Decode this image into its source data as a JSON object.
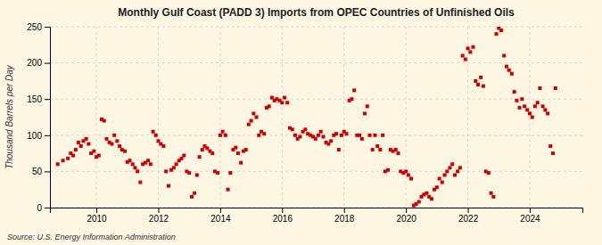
{
  "chart_data": {
    "type": "scatter",
    "title": "Monthly Gulf Coast (PADD 3) Imports from OPEC Countries of Unfinished Oils",
    "ylabel": "Thousand Barrels per Day",
    "source": "Source: U.S. Energy Information Administration",
    "color": "#cc0000",
    "marker": "square",
    "grid": true,
    "xlim": [
      2008.5,
      2025.7
    ],
    "xticks": [
      2010,
      2012,
      2014,
      2016,
      2018,
      2020,
      2022,
      2024
    ],
    "ylim": [
      0,
      250
    ],
    "yticks": [
      0,
      50,
      100,
      150,
      200,
      250
    ],
    "x": [
      2008.75,
      2008.92,
      2009.08,
      2009.17,
      2009.25,
      2009.33,
      2009.42,
      2009.5,
      2009.58,
      2009.67,
      2009.75,
      2009.83,
      2009.92,
      2010.0,
      2010.08,
      2010.17,
      2010.25,
      2010.33,
      2010.42,
      2010.5,
      2010.58,
      2010.67,
      2010.75,
      2010.83,
      2010.92,
      2011.0,
      2011.08,
      2011.17,
      2011.25,
      2011.33,
      2011.42,
      2011.5,
      2011.58,
      2011.67,
      2011.75,
      2011.83,
      2011.92,
      2012.0,
      2012.08,
      2012.17,
      2012.25,
      2012.33,
      2012.42,
      2012.5,
      2012.58,
      2012.67,
      2012.75,
      2012.83,
      2012.92,
      2013.0,
      2013.08,
      2013.17,
      2013.25,
      2013.33,
      2013.42,
      2013.5,
      2013.58,
      2013.67,
      2013.75,
      2013.83,
      2013.92,
      2014.0,
      2014.08,
      2014.17,
      2014.25,
      2014.33,
      2014.42,
      2014.5,
      2014.58,
      2014.67,
      2014.75,
      2014.83,
      2014.92,
      2015.0,
      2015.08,
      2015.17,
      2015.25,
      2015.33,
      2015.42,
      2015.5,
      2015.58,
      2015.67,
      2015.75,
      2015.83,
      2015.92,
      2016.0,
      2016.08,
      2016.17,
      2016.25,
      2016.33,
      2016.42,
      2016.5,
      2016.58,
      2016.67,
      2016.75,
      2016.83,
      2016.92,
      2017.0,
      2017.08,
      2017.17,
      2017.25,
      2017.33,
      2017.42,
      2017.5,
      2017.58,
      2017.67,
      2017.75,
      2017.83,
      2017.92,
      2018.0,
      2018.08,
      2018.17,
      2018.25,
      2018.33,
      2018.42,
      2018.5,
      2018.58,
      2018.67,
      2018.75,
      2018.83,
      2018.92,
      2019.0,
      2019.08,
      2019.17,
      2019.25,
      2019.33,
      2019.42,
      2019.5,
      2019.58,
      2019.67,
      2019.75,
      2019.83,
      2019.92,
      2020.0,
      2020.08,
      2020.17,
      2020.25,
      2020.33,
      2020.42,
      2020.5,
      2020.58,
      2020.67,
      2020.75,
      2020.83,
      2020.92,
      2021.0,
      2021.08,
      2021.17,
      2021.25,
      2021.33,
      2021.42,
      2021.5,
      2021.58,
      2021.67,
      2021.75,
      2021.83,
      2021.92,
      2022.0,
      2022.08,
      2022.17,
      2022.25,
      2022.33,
      2022.42,
      2022.5,
      2022.58,
      2022.67,
      2022.75,
      2022.83,
      2022.92,
      2023.0,
      2023.08,
      2023.17,
      2023.25,
      2023.33,
      2023.42,
      2023.5,
      2023.58,
      2023.67,
      2023.75,
      2023.83,
      2023.92,
      2024.0,
      2024.08,
      2024.17,
      2024.25,
      2024.33,
      2024.42,
      2024.5,
      2024.58,
      2024.67,
      2024.75,
      2024.83
    ],
    "values": [
      60,
      65,
      68,
      75,
      72,
      80,
      90,
      85,
      92,
      95,
      88,
      75,
      78,
      70,
      72,
      122,
      120,
      95,
      90,
      88,
      100,
      92,
      85,
      80,
      78,
      63,
      65,
      60,
      55,
      50,
      35,
      60,
      62,
      65,
      60,
      105,
      100,
      92,
      88,
      85,
      50,
      30,
      52,
      55,
      60,
      65,
      68,
      72,
      50,
      48,
      15,
      20,
      45,
      70,
      80,
      85,
      82,
      78,
      75,
      50,
      48,
      100,
      105,
      100,
      25,
      48,
      80,
      83,
      75,
      62,
      78,
      80,
      115,
      120,
      130,
      125,
      100,
      105,
      102,
      138,
      140,
      152,
      148,
      150,
      148,
      145,
      152,
      145,
      110,
      108,
      100,
      95,
      98,
      105,
      108,
      102,
      100,
      98,
      95,
      100,
      105,
      98,
      90,
      88,
      92,
      100,
      102,
      80,
      100,
      105,
      102,
      148,
      150,
      162,
      100,
      100,
      95,
      130,
      140,
      100,
      80,
      100,
      85,
      80,
      100,
      50,
      52,
      80,
      78,
      80,
      75,
      50,
      48,
      50,
      45,
      40,
      3,
      5,
      8,
      15,
      18,
      20,
      15,
      12,
      25,
      28,
      40,
      35,
      45,
      50,
      55,
      60,
      45,
      50,
      55,
      210,
      205,
      220,
      215,
      222,
      175,
      170,
      180,
      168,
      50,
      48,
      20,
      15,
      240,
      248,
      245,
      210,
      195,
      190,
      185,
      160,
      148,
      138,
      150,
      140,
      135,
      130,
      125,
      140,
      145,
      165,
      140,
      135,
      130,
      85,
      75,
      165
    ]
  }
}
